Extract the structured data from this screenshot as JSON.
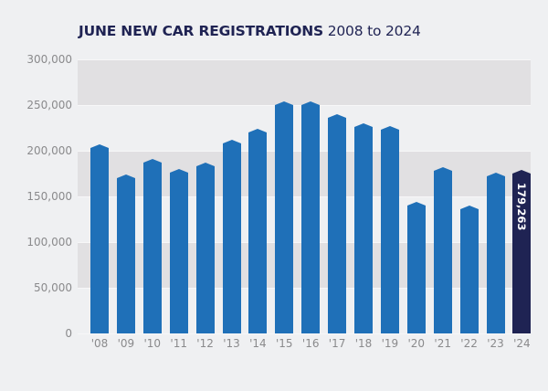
{
  "title": {
    "bold": "JUNE NEW CAR REGISTRATIONS",
    "regular": "2008 to 2024"
  },
  "colors": {
    "background": "#eff0f2",
    "band": "#e1e0e2",
    "bar": "#1f70b8",
    "highlight_bar": "#1f2353",
    "title": "#1f2353",
    "tick_text": "#8a8a8c"
  },
  "y_ticks": [
    "300,000",
    "250,000",
    "200,000",
    "150,000",
    "100,000",
    "50,000",
    "0"
  ],
  "x_ticks": [
    "'08",
    "'09",
    "'10",
    "'11",
    "'12",
    "'13",
    "'14",
    "'15",
    "'16",
    "'17",
    "'18",
    "'19",
    "'20",
    "'21",
    "'22",
    "'23",
    "'24"
  ],
  "highlight_label": "179,263",
  "chart_data": {
    "type": "bar",
    "title": "JUNE NEW CAR REGISTRATIONS 2008 to 2024",
    "xlabel": "",
    "ylabel": "",
    "categories": [
      "'08",
      "'09",
      "'10",
      "'11",
      "'12",
      "'13",
      "'14",
      "'15",
      "'16",
      "'17",
      "'18",
      "'19",
      "'20",
      "'21",
      "'22",
      "'23",
      "'24"
    ],
    "values": [
      207000,
      174000,
      191000,
      180000,
      187000,
      212000,
      224000,
      254000,
      254000,
      240000,
      230000,
      227000,
      144000,
      182000,
      140000,
      176000,
      179263
    ],
    "ylim": [
      0,
      300000
    ],
    "yticks": [
      0,
      50000,
      100000,
      150000,
      200000,
      250000,
      300000
    ],
    "grid": "alternating horizontal bands",
    "legend": null,
    "annotations": [
      {
        "category": "'24",
        "text": "179,263",
        "orientation": "vertical, inside bar"
      }
    ],
    "highlight": {
      "category": "'24",
      "color": "#1f2353"
    }
  }
}
